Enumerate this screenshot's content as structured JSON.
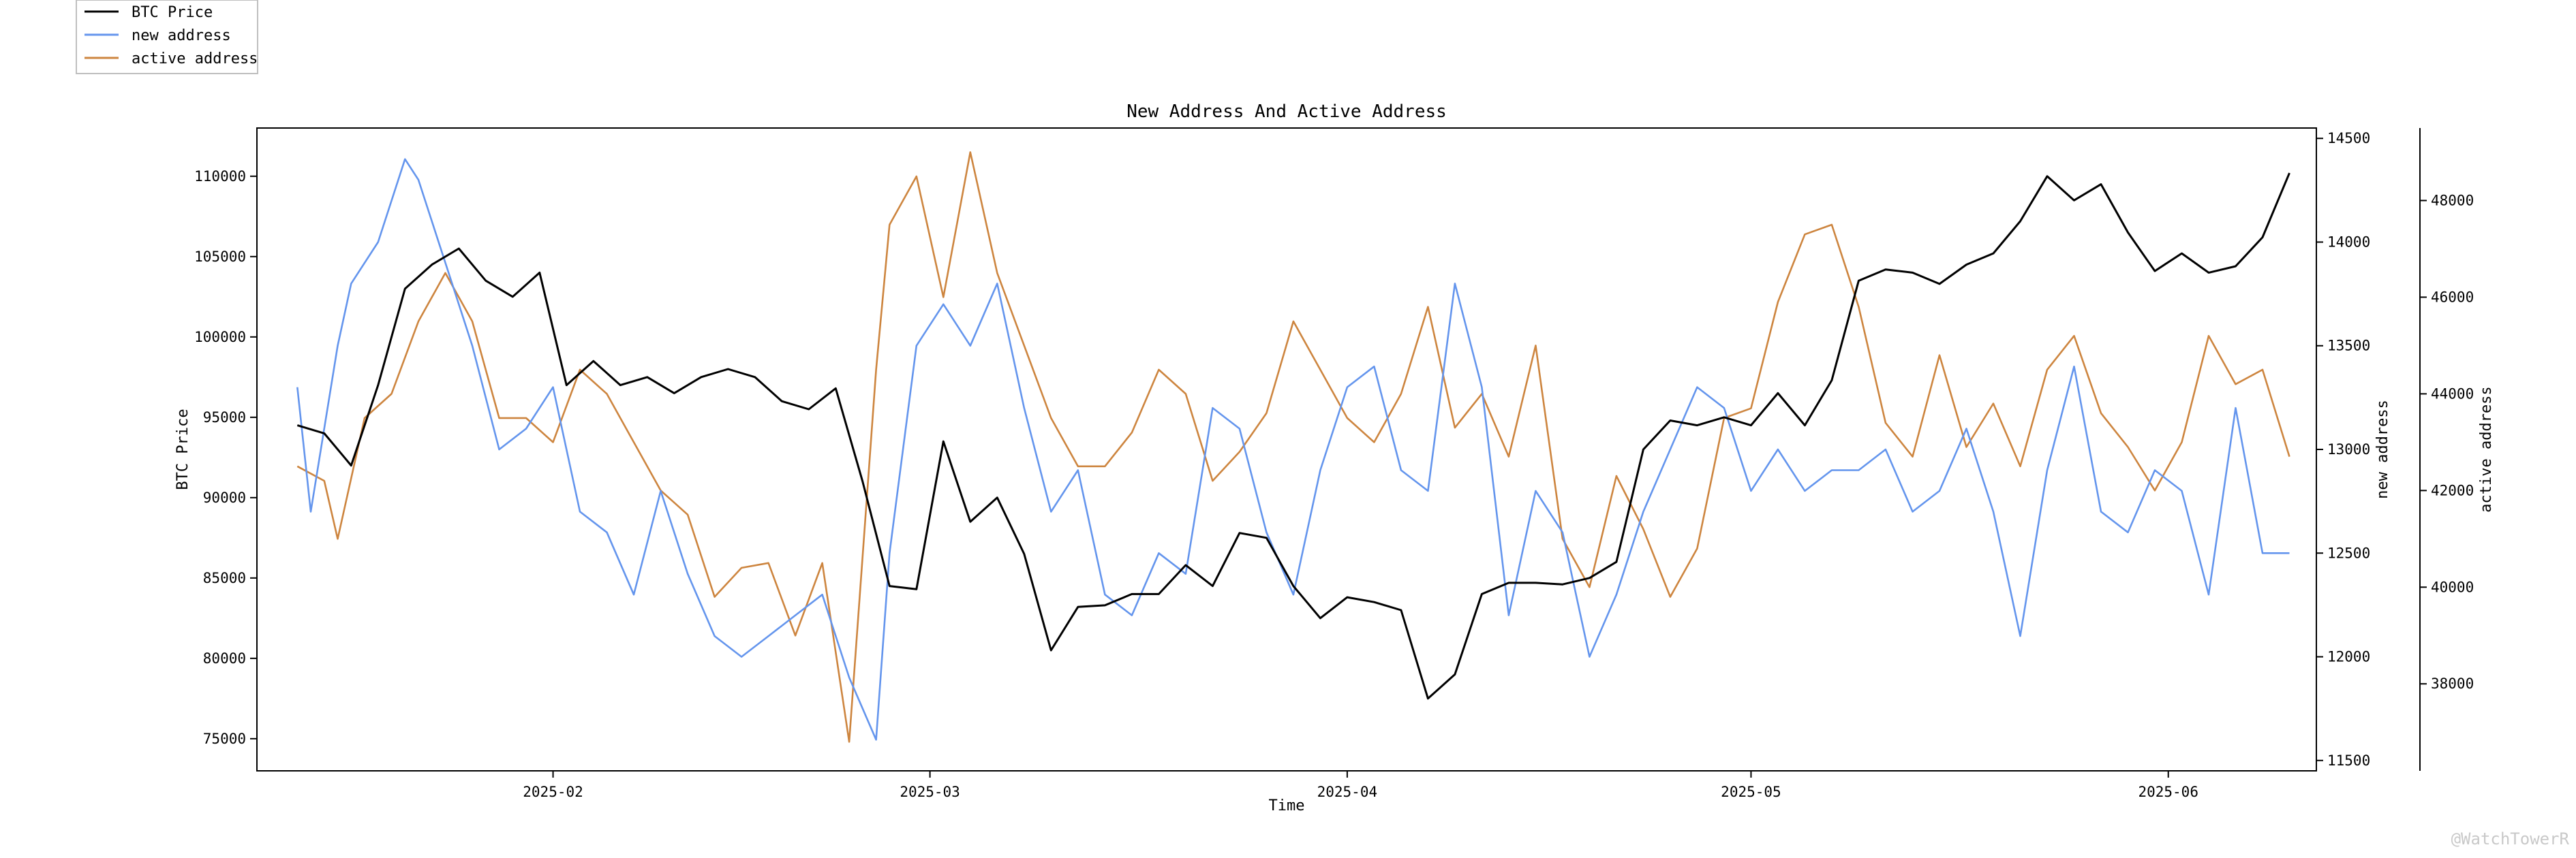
{
  "chart_data": {
    "type": "line",
    "title": "New Address And Active Address",
    "xlabel": "Time",
    "x_ticks": [
      "2025-02",
      "2025-03",
      "2025-04",
      "2025-05",
      "2025-06"
    ],
    "x_range": [
      "2025-01-10",
      "2025-06-12"
    ],
    "grid": false,
    "legend_position": "top-left",
    "watermark": "@WatchTowerR",
    "axes": [
      {
        "id": "btc",
        "side": "left",
        "label": "BTC Price",
        "ylim": [
          73000,
          113000
        ],
        "ticks": [
          "75000",
          "80000",
          "85000",
          "90000",
          "95000",
          "100000",
          "105000",
          "110000"
        ]
      },
      {
        "id": "newaddr",
        "side": "right",
        "label": "new address",
        "ylim": [
          11450,
          14550
        ],
        "ticks": [
          "11500",
          "12000",
          "12500",
          "13000",
          "13500",
          "14000",
          "14500"
        ]
      },
      {
        "id": "active",
        "side": "right-outer",
        "label": "active address",
        "ylim": [
          36200,
          49500
        ],
        "ticks": [
          "38000",
          "40000",
          "42000",
          "44000",
          "46000",
          "48000"
        ]
      }
    ],
    "series": [
      {
        "name": "BTC Price",
        "axis": "btc",
        "color": "#000000",
        "x": [
          "2025-01-13",
          "2025-01-15",
          "2025-01-17",
          "2025-01-19",
          "2025-01-21",
          "2025-01-23",
          "2025-01-25",
          "2025-01-27",
          "2025-01-29",
          "2025-01-31",
          "2025-02-02",
          "2025-02-04",
          "2025-02-06",
          "2025-02-08",
          "2025-02-10",
          "2025-02-12",
          "2025-02-14",
          "2025-02-16",
          "2025-02-18",
          "2025-02-20",
          "2025-02-22",
          "2025-02-24",
          "2025-02-26",
          "2025-02-28",
          "2025-03-02",
          "2025-03-04",
          "2025-03-06",
          "2025-03-08",
          "2025-03-10",
          "2025-03-12",
          "2025-03-14",
          "2025-03-16",
          "2025-03-18",
          "2025-03-20",
          "2025-03-22",
          "2025-03-24",
          "2025-03-26",
          "2025-03-28",
          "2025-03-30",
          "2025-04-01",
          "2025-04-03",
          "2025-04-05",
          "2025-04-07",
          "2025-04-09",
          "2025-04-11",
          "2025-04-13",
          "2025-04-15",
          "2025-04-17",
          "2025-04-19",
          "2025-04-21",
          "2025-04-23",
          "2025-04-25",
          "2025-04-27",
          "2025-04-29",
          "2025-05-01",
          "2025-05-03",
          "2025-05-05",
          "2025-05-07",
          "2025-05-09",
          "2025-05-11",
          "2025-05-13",
          "2025-05-15",
          "2025-05-17",
          "2025-05-19",
          "2025-05-21",
          "2025-05-23",
          "2025-05-25",
          "2025-05-27",
          "2025-05-29",
          "2025-05-31",
          "2025-06-02",
          "2025-06-04",
          "2025-06-06",
          "2025-06-08",
          "2025-06-10"
        ],
        "values": [
          94500,
          94000,
          92000,
          97000,
          103000,
          104500,
          105500,
          103500,
          102500,
          104000,
          97000,
          98500,
          97000,
          97500,
          96500,
          97500,
          98000,
          97500,
          96000,
          95500,
          96800,
          91000,
          84500,
          84300,
          93500,
          88500,
          90000,
          86500,
          80500,
          83200,
          83300,
          84000,
          84000,
          85800,
          84500,
          87800,
          87500,
          84500,
          82500,
          83800,
          83500,
          83000,
          77500,
          79000,
          84000,
          84700,
          84700,
          84600,
          85000,
          86000,
          93000,
          94800,
          94500,
          95000,
          94500,
          96500,
          94500,
          97300,
          103500,
          104200,
          104000,
          103300,
          104500,
          105200,
          107200,
          110000,
          108500,
          109500,
          106500,
          104100,
          105200,
          104000,
          104400,
          106200,
          110200
        ]
      },
      {
        "name": "new address",
        "axis": "newaddr",
        "color": "#6495ED",
        "x": [
          "2025-01-13",
          "2025-01-14",
          "2025-01-16",
          "2025-01-17",
          "2025-01-19",
          "2025-01-21",
          "2025-01-22",
          "2025-01-24",
          "2025-01-26",
          "2025-01-28",
          "2025-01-30",
          "2025-02-01",
          "2025-02-03",
          "2025-02-05",
          "2025-02-07",
          "2025-02-09",
          "2025-02-11",
          "2025-02-13",
          "2025-02-15",
          "2025-02-17",
          "2025-02-19",
          "2025-02-21",
          "2025-02-23",
          "2025-02-25",
          "2025-02-26",
          "2025-02-28",
          "2025-03-02",
          "2025-03-04",
          "2025-03-06",
          "2025-03-08",
          "2025-03-10",
          "2025-03-12",
          "2025-03-14",
          "2025-03-16",
          "2025-03-18",
          "2025-03-20",
          "2025-03-22",
          "2025-03-24",
          "2025-03-26",
          "2025-03-28",
          "2025-03-30",
          "2025-04-01",
          "2025-04-03",
          "2025-04-05",
          "2025-04-07",
          "2025-04-09",
          "2025-04-11",
          "2025-04-13",
          "2025-04-15",
          "2025-04-17",
          "2025-04-19",
          "2025-04-21",
          "2025-04-23",
          "2025-04-25",
          "2025-04-27",
          "2025-04-29",
          "2025-05-01",
          "2025-05-03",
          "2025-05-05",
          "2025-05-07",
          "2025-05-09",
          "2025-05-11",
          "2025-05-13",
          "2025-05-15",
          "2025-05-17",
          "2025-05-19",
          "2025-05-21",
          "2025-05-23",
          "2025-05-25",
          "2025-05-27",
          "2025-05-29",
          "2025-05-31",
          "2025-06-02",
          "2025-06-04",
          "2025-06-06",
          "2025-06-08",
          "2025-06-10"
        ],
        "values": [
          13300,
          12700,
          13500,
          13800,
          14000,
          14400,
          14300,
          13900,
          13500,
          13000,
          13100,
          13300,
          12700,
          12600,
          12300,
          12800,
          12400,
          12100,
          12000,
          12100,
          12200,
          12300,
          11900,
          11600,
          12500,
          13500,
          13700,
          13500,
          13800,
          13200,
          12700,
          12900,
          12300,
          12200,
          12500,
          12400,
          13200,
          13100,
          12600,
          12300,
          12900,
          13300,
          13400,
          12900,
          12800,
          13800,
          13300,
          12200,
          12800,
          12600,
          12000,
          12300,
          12700,
          13000,
          13300,
          13200,
          12800,
          13000,
          12800,
          12900,
          12900,
          13000,
          12700,
          12800,
          13100,
          12700,
          12100,
          12900,
          13400,
          12700,
          12600,
          12900,
          12800,
          12300,
          13200,
          12500,
          12500
        ]
      },
      {
        "name": "active address",
        "axis": "active",
        "color": "#CD853F",
        "x": [
          "2025-01-13",
          "2025-01-15",
          "2025-01-16",
          "2025-01-18",
          "2025-01-20",
          "2025-01-22",
          "2025-01-24",
          "2025-01-26",
          "2025-01-28",
          "2025-01-30",
          "2025-02-01",
          "2025-02-03",
          "2025-02-05",
          "2025-02-07",
          "2025-02-09",
          "2025-02-11",
          "2025-02-13",
          "2025-02-15",
          "2025-02-17",
          "2025-02-19",
          "2025-02-21",
          "2025-02-23",
          "2025-02-25",
          "2025-02-26",
          "2025-02-28",
          "2025-03-02",
          "2025-03-04",
          "2025-03-06",
          "2025-03-08",
          "2025-03-10",
          "2025-03-12",
          "2025-03-14",
          "2025-03-16",
          "2025-03-18",
          "2025-03-20",
          "2025-03-22",
          "2025-03-24",
          "2025-03-26",
          "2025-03-28",
          "2025-03-30",
          "2025-04-01",
          "2025-04-03",
          "2025-04-05",
          "2025-04-07",
          "2025-04-09",
          "2025-04-11",
          "2025-04-13",
          "2025-04-15",
          "2025-04-17",
          "2025-04-19",
          "2025-04-21",
          "2025-04-23",
          "2025-04-25",
          "2025-04-27",
          "2025-04-29",
          "2025-05-01",
          "2025-05-03",
          "2025-05-05",
          "2025-05-07",
          "2025-05-09",
          "2025-05-11",
          "2025-05-13",
          "2025-05-15",
          "2025-05-17",
          "2025-05-19",
          "2025-05-21",
          "2025-05-23",
          "2025-05-25",
          "2025-05-27",
          "2025-05-29",
          "2025-05-31",
          "2025-06-02",
          "2025-06-04",
          "2025-06-06",
          "2025-06-08",
          "2025-06-10"
        ],
        "values": [
          42500,
          42200,
          41000,
          43500,
          44000,
          45500,
          46500,
          45500,
          43500,
          43500,
          43000,
          44500,
          44000,
          43000,
          42000,
          41500,
          39800,
          40400,
          40500,
          39000,
          40500,
          36800,
          44500,
          47500,
          48500,
          46000,
          49000,
          46500,
          45000,
          43500,
          42500,
          42500,
          43200,
          44500,
          44000,
          42200,
          42800,
          43600,
          45500,
          44500,
          43500,
          43000,
          44000,
          45800,
          43300,
          44000,
          42700,
          45000,
          41000,
          40000,
          42300,
          41200,
          39800,
          40800,
          43500,
          43700,
          45900,
          47300,
          47500,
          45800,
          43400,
          42700,
          44800,
          42900,
          43800,
          42500,
          44500,
          45200,
          43600,
          42900,
          42000,
          43000,
          45200,
          44200,
          44500,
          42700
        ]
      }
    ]
  },
  "legend": {
    "items": [
      {
        "label": "BTC Price",
        "color": "#000000"
      },
      {
        "label": "new address",
        "color": "#6495ED"
      },
      {
        "label": "active address",
        "color": "#CD853F"
      }
    ]
  }
}
